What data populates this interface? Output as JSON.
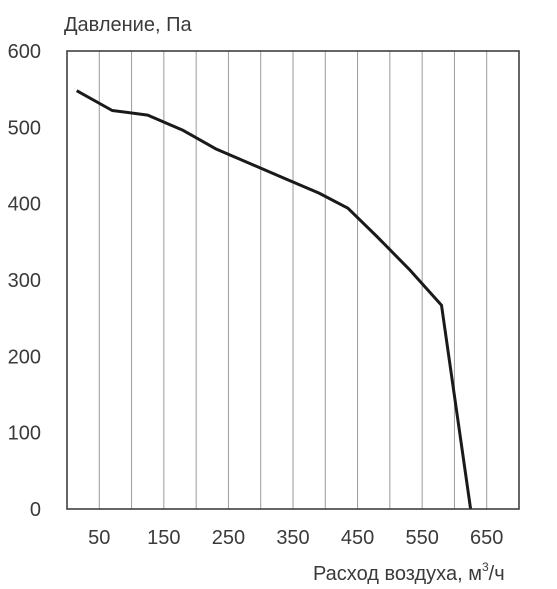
{
  "chart_data": {
    "type": "line",
    "ylabel": "Давление, Па",
    "xlabel": "Расход воздуха, м",
    "xlabel_sup": "3",
    "xlabel_suffix": "/ч",
    "ylim": [
      0,
      600
    ],
    "y_ticks": [
      0,
      100,
      200,
      300,
      400,
      500,
      600
    ],
    "x_ticks": [
      "50",
      "150",
      "250",
      "350",
      "450",
      "550",
      "650"
    ],
    "grid": true,
    "colors": {
      "curve": "#1a1a1a",
      "grid": "#9a9a9a",
      "axis": "#333333",
      "text": "#3a3a3a"
    },
    "series": [
      {
        "x": [
          15,
          70,
          125,
          180,
          230,
          285,
          340,
          390,
          435,
          480,
          530,
          580,
          625
        ],
        "y": [
          548,
          522,
          516,
          496,
          472,
          452,
          432,
          414,
          394,
          357,
          314,
          267,
          0
        ]
      }
    ]
  }
}
